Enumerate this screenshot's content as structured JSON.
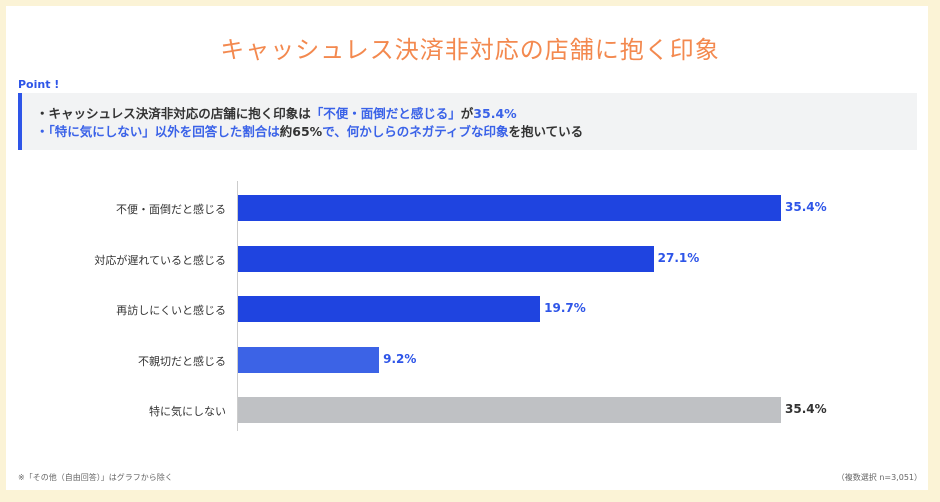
{
  "title": "キャッシュレス決済非対応の店舗に抱く印象",
  "point": {
    "label": "Point !",
    "line1": {
      "a": "・キャッシュレス決済非対応の店舗に抱く印象は",
      "b": "「不便・面倒だと感じる」",
      "c": "が",
      "d": "35.4%"
    },
    "line2": {
      "a": "・「特に気にしない」以外を回答した割合は",
      "b": "約65%",
      "c": "で、何かしらのネガティブな印象",
      "d": "を抱いている"
    }
  },
  "chart_data": {
    "type": "bar",
    "orientation": "horizontal",
    "categories": [
      "不便・面倒だと感じる",
      "対応が遅れていると感じる",
      "再訪しにくいと感じる",
      "不親切だと感じる",
      "特に気にしない"
    ],
    "values": [
      35.4,
      27.1,
      19.7,
      9.2,
      35.4
    ],
    "value_labels": [
      "35.4%",
      "27.1%",
      "19.7%",
      "9.2%",
      "35.4%"
    ],
    "colors": [
      "#1f44e0",
      "#1f44e0",
      "#1f44e0",
      "#3c63e6",
      "#bfc1c4"
    ],
    "label_colors": [
      "#2e55e8",
      "#2e55e8",
      "#2e55e8",
      "#2e55e8",
      "#333333"
    ],
    "xlim": [
      0,
      35.4
    ],
    "grid": false
  },
  "footnote": "※「その他（自由回答）」はグラフから除く",
  "sample": "（複数選択 n=3,051）"
}
